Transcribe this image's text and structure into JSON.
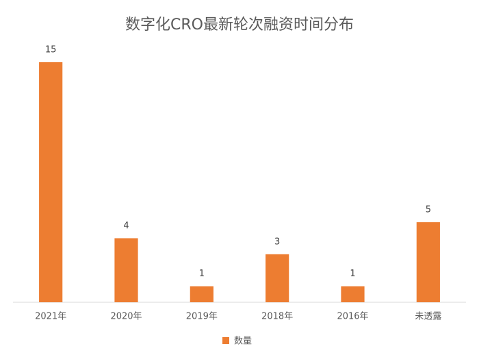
{
  "chart_data": {
    "type": "bar",
    "title": "数字化CRO最新轮次融资时间分布",
    "categories": [
      "2021年",
      "2020年",
      "2019年",
      "2018年",
      "2016年",
      "未透露"
    ],
    "series": [
      {
        "name": "数量",
        "color": "#ed7d31",
        "values": [
          15,
          4,
          1,
          3,
          1,
          5
        ]
      }
    ],
    "ylim": [
      0,
      15
    ],
    "legend": "bottom"
  }
}
